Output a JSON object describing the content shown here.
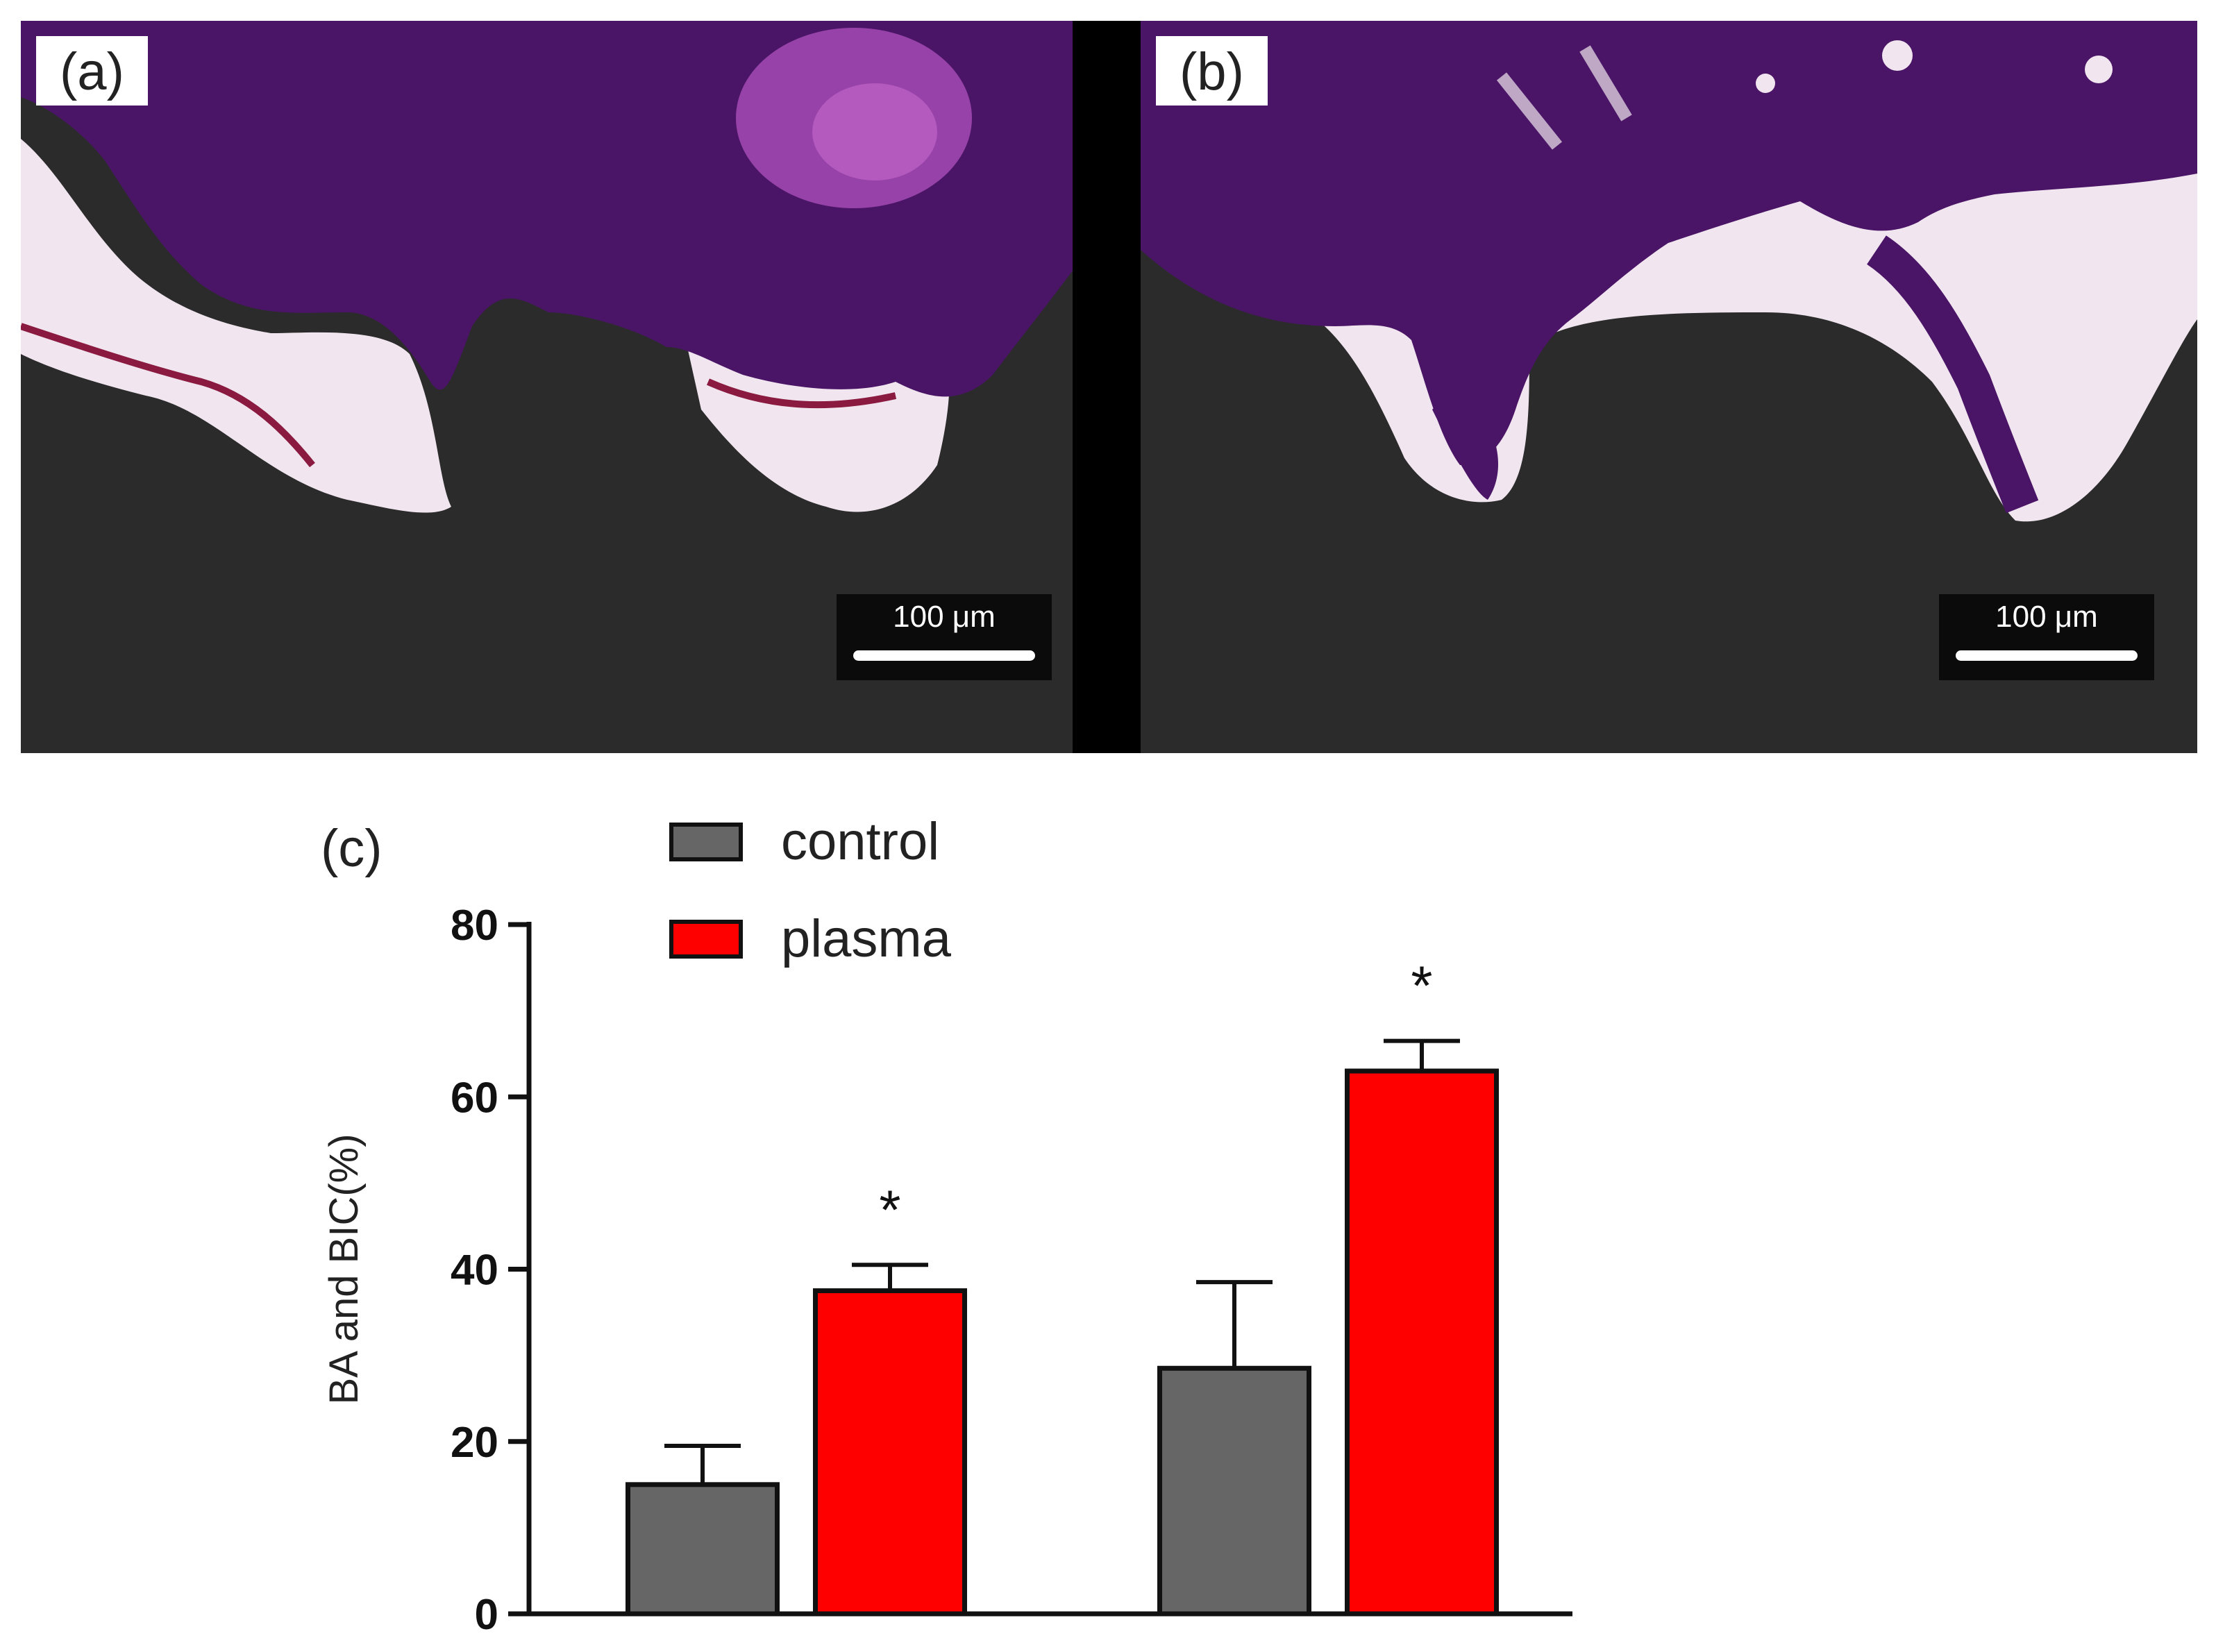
{
  "panels": [
    {
      "label": "(a)",
      "scalebar": "100 μm"
    },
    {
      "label": "(b)",
      "scalebar": "100 μm"
    }
  ],
  "chart_label": "(c)",
  "colors": {
    "control": "#666666",
    "plasma": "#ff0000",
    "implant": "#2b2b2b",
    "stain": "#4a1566"
  },
  "chart_data": {
    "type": "bar",
    "title": "",
    "xlabel": "",
    "ylabel": "BA and BIC(%)",
    "ylim": [
      0,
      80
    ],
    "yticks": [
      0,
      20,
      40,
      60,
      80
    ],
    "categories": [
      "",
      ""
    ],
    "series": [
      {
        "name": "control",
        "color": "#666666",
        "values": [
          15,
          28.5
        ],
        "errors": [
          4.5,
          10
        ]
      },
      {
        "name": "plasma",
        "color": "#ff0000",
        "values": [
          37.5,
          63
        ],
        "errors": [
          3,
          3.5
        ]
      }
    ],
    "annotations": [
      "*",
      "*"
    ],
    "legend": "top-left"
  }
}
